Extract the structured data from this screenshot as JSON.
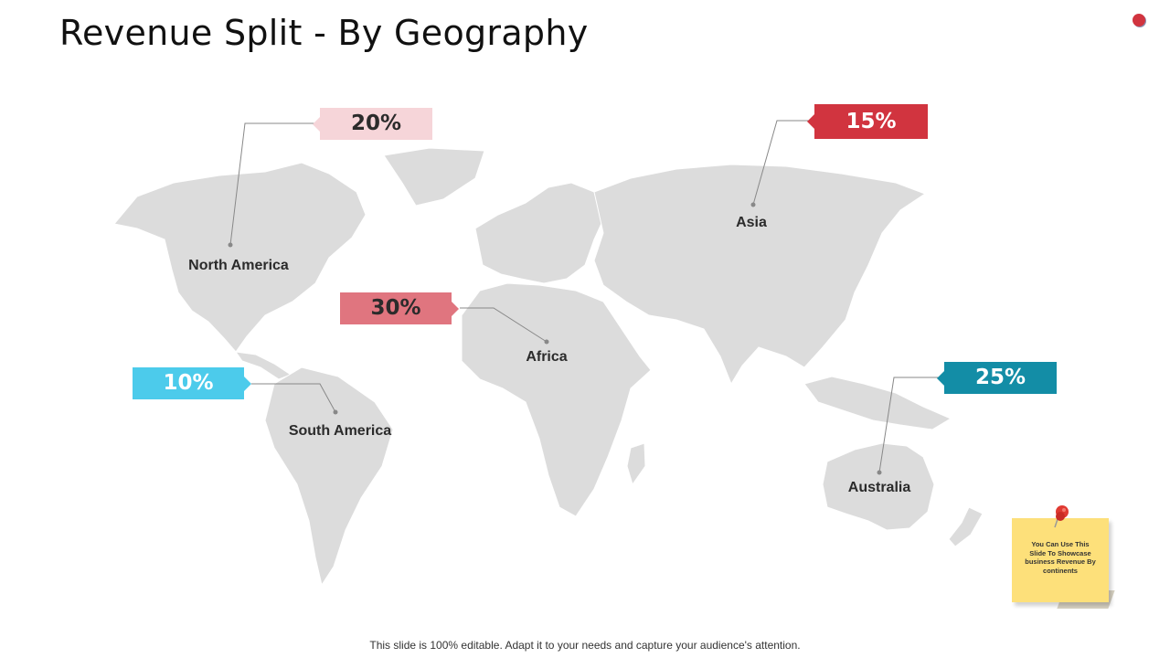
{
  "title": "Revenue Split - By Geography",
  "regions": {
    "north_america": {
      "label": "North America",
      "percent": "20%",
      "color": "#f6d5d9"
    },
    "asia": {
      "label": "Asia",
      "percent": "15%",
      "color": "#d1343f"
    },
    "africa": {
      "label": "Africa",
      "percent": "30%",
      "color": "#e0757f"
    },
    "south_america": {
      "label": "South America",
      "percent": "10%",
      "color": "#4ccbeb"
    },
    "australia": {
      "label": "Australia",
      "percent": "25%",
      "color": "#138da6"
    }
  },
  "sticky_note": {
    "text": "You Can Use This Slide To Showcase business Revenue By continents"
  },
  "footer": "This slide is 100% editable. Adapt it to your needs and capture your audience's attention."
}
